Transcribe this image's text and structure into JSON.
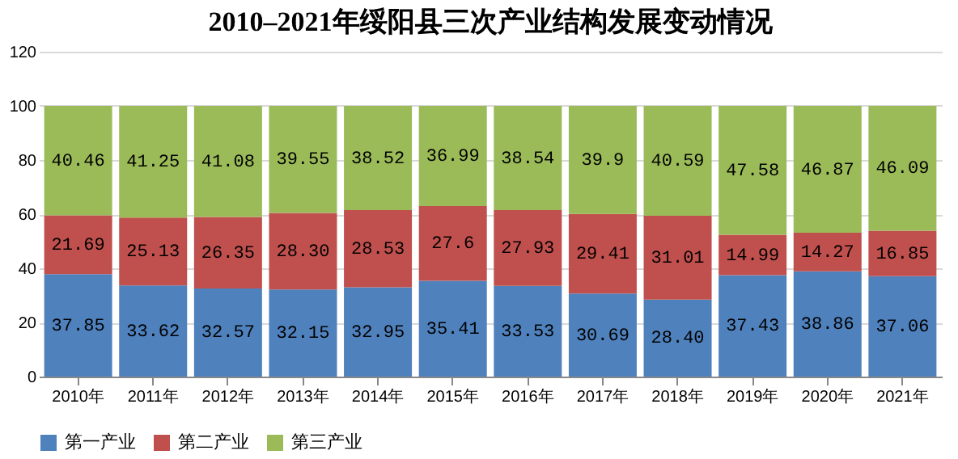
{
  "chart_data": {
    "type": "bar",
    "title": "2010–2021年绥阳县三次产业结构发展变动情况",
    "stacked": true,
    "categories": [
      "2010年",
      "2011年",
      "2012年",
      "2013年",
      "2014年",
      "2015年",
      "2016年",
      "2017年",
      "2018年",
      "2019年",
      "2020年",
      "2021年"
    ],
    "series": [
      {
        "name": "第一产业",
        "color": "#4f81bd",
        "values": [
          37.85,
          33.62,
          32.57,
          32.15,
          32.95,
          35.41,
          33.53,
          30.69,
          28.4,
          37.43,
          38.86,
          37.06
        ],
        "value_labels": [
          "37.85",
          "33.62",
          "32.57",
          "32.15",
          "32.95",
          "35.41",
          "33.53",
          "30.69",
          "28.40",
          "37.43",
          "38.86",
          "37.06"
        ]
      },
      {
        "name": "第二产业",
        "color": "#c0504d",
        "values": [
          21.69,
          25.13,
          26.35,
          28.3,
          28.53,
          27.6,
          27.93,
          29.41,
          31.01,
          14.99,
          14.27,
          16.85
        ],
        "value_labels": [
          "21.69",
          "25.13",
          "26.35",
          "28.30",
          "28.53",
          "27.6",
          "27.93",
          "29.41",
          "31.01",
          "14.99",
          "14.27",
          "16.85"
        ]
      },
      {
        "name": "第三产业",
        "color": "#9bbb59",
        "values": [
          40.46,
          41.25,
          41.08,
          39.55,
          38.52,
          36.99,
          38.54,
          39.9,
          40.59,
          47.58,
          46.87,
          46.09
        ],
        "value_labels": [
          "40.46",
          "41.25",
          "41.08",
          "39.55",
          "38.52",
          "36.99",
          "38.54",
          "39.9",
          "40.59",
          "47.58",
          "46.87",
          "46.09"
        ]
      }
    ],
    "ylim": [
      0,
      120
    ],
    "yticks": [
      0,
      20,
      40,
      60,
      80,
      100,
      120
    ],
    "grid": "y",
    "legend": "bottom"
  }
}
